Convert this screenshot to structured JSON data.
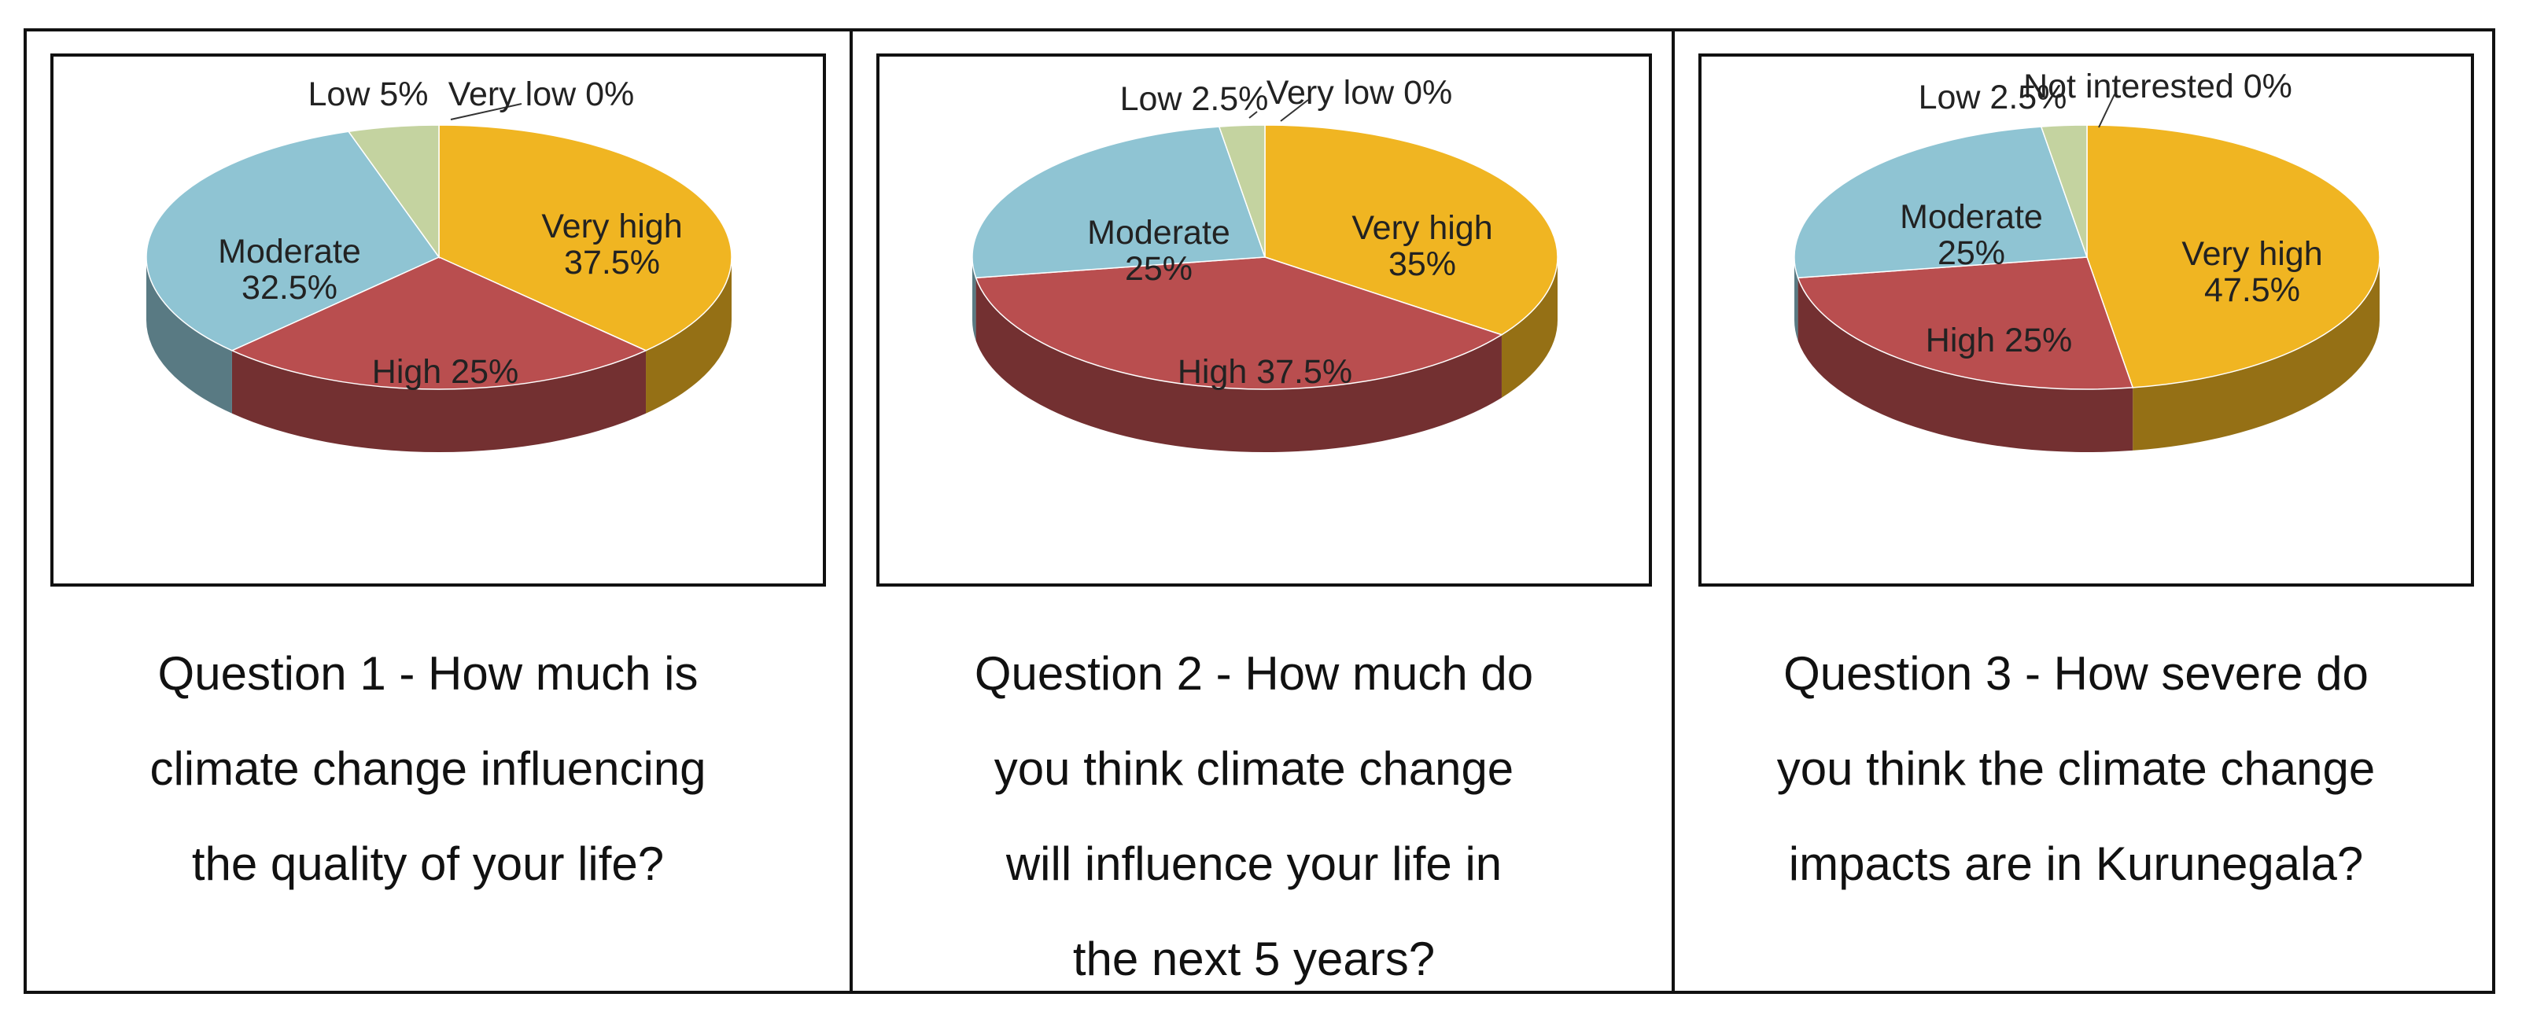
{
  "chart_data": [
    {
      "type": "pie",
      "style": "3d",
      "title": "Question 1 - How much is\nclimate change influencing\nthe quality of your life?",
      "slices": [
        {
          "label": "Very high",
          "value": 37.5,
          "display": "Very high\n37.5%",
          "color": "#F0B522"
        },
        {
          "label": "High",
          "value": 25,
          "display": "High 25%",
          "color": "#B94E4F"
        },
        {
          "label": "Moderate",
          "value": 32.5,
          "display": "Moderate\n32.5%",
          "color": "#8FC4D3"
        },
        {
          "label": "Low",
          "value": 5,
          "display": "Low 5%",
          "color": "#C4D3A0"
        },
        {
          "label": "Very low",
          "value": 0,
          "display": "Very low 0%",
          "color": "#9FB8D8"
        }
      ]
    },
    {
      "type": "pie",
      "style": "3d",
      "title": "Question 2 - How much do\nyou think climate change\nwill influence your life in\nthe next 5 years?",
      "slices": [
        {
          "label": "Very high",
          "value": 35,
          "display": "Very high\n35%",
          "color": "#F0B522"
        },
        {
          "label": "High",
          "value": 37.5,
          "display": "High 37.5%",
          "color": "#B94E4F"
        },
        {
          "label": "Moderate",
          "value": 25,
          "display": "Moderate\n25%",
          "color": "#8FC4D3"
        },
        {
          "label": "Low",
          "value": 2.5,
          "display": "Low 2.5%",
          "color": "#C4D3A0"
        },
        {
          "label": "Very low",
          "value": 0,
          "display": "Very low 0%",
          "color": "#9FB8D8"
        }
      ]
    },
    {
      "type": "pie",
      "style": "3d",
      "title": "Question 3 - How severe do\nyou think the climate change\nimpacts are in Kurunegala?",
      "slices": [
        {
          "label": "Very high",
          "value": 47.5,
          "display": "Very high\n47.5%",
          "color": "#F0B522"
        },
        {
          "label": "High",
          "value": 25,
          "display": "High 25%",
          "color": "#B94E4F"
        },
        {
          "label": "Moderate",
          "value": 25,
          "display": "Moderate\n25%",
          "color": "#8FC4D3"
        },
        {
          "label": "Low",
          "value": 2.5,
          "display": "Low 2.5%",
          "color": "#C4D3A0"
        },
        {
          "label": "Not interested",
          "value": 0,
          "display": "Not interested 0%",
          "color": "#9FB8D8"
        }
      ]
    }
  ]
}
